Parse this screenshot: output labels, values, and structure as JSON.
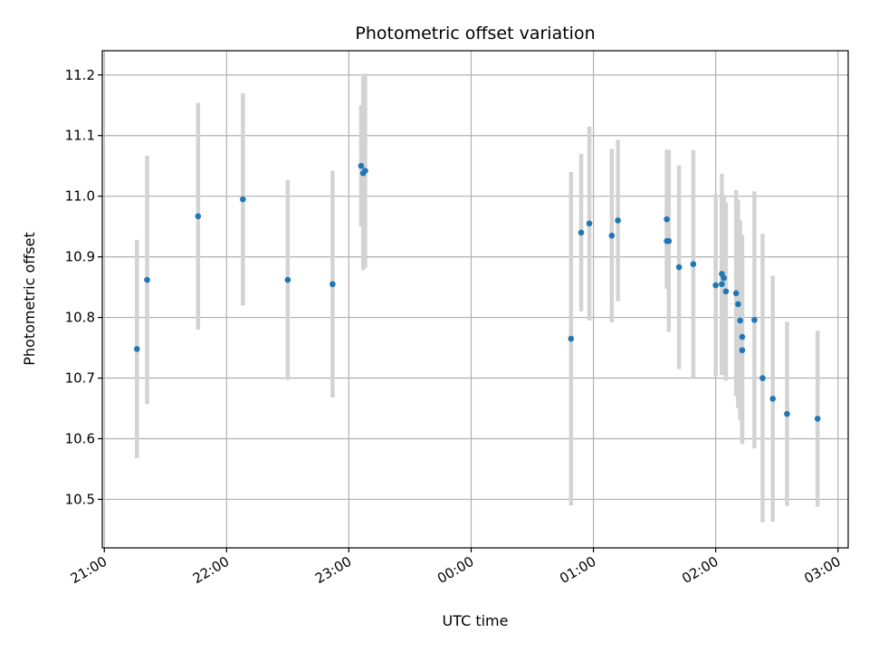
{
  "chart_data": {
    "type": "scatter",
    "title": "Photometric offset variation",
    "xlabel": "UTC time",
    "ylabel": "Photometric offset",
    "x_axis": {
      "kind": "time",
      "range": [
        "20:59",
        "03:05"
      ],
      "ticks": [
        "21:00",
        "22:00",
        "23:00",
        "00:00",
        "01:00",
        "02:00",
        "03:00"
      ],
      "tick_label_rotation": "rotated"
    },
    "ylim": [
      10.42,
      11.24
    ],
    "yticks": [
      "10.5",
      "10.6",
      "10.7",
      "10.8",
      "10.9",
      "11.0",
      "11.1",
      "11.2"
    ],
    "grid": true,
    "colors": {
      "point": "#1f77b4",
      "errorbar": "#d3d3d3"
    },
    "series": [
      {
        "points": [
          {
            "t": "21:16",
            "y": 10.748,
            "err": 0.18
          },
          {
            "t": "21:21",
            "y": 10.862,
            "err": 0.205
          },
          {
            "t": "21:46",
            "y": 10.967,
            "err": 0.187
          },
          {
            "t": "22:08",
            "y": 10.995,
            "err": 0.175
          },
          {
            "t": "22:30",
            "y": 10.862,
            "err": 0.165
          },
          {
            "t": "22:52",
            "y": 10.855,
            "err": 0.187
          },
          {
            "t": "23:06",
            "y": 11.05,
            "err": 0.1
          },
          {
            "t": "23:07",
            "y": 11.038,
            "err": 0.16
          },
          {
            "t": "23:08",
            "y": 11.042,
            "err": 0.16
          },
          {
            "t": "00:49",
            "y": 10.765,
            "err": 0.275
          },
          {
            "t": "00:54",
            "y": 10.94,
            "err": 0.13
          },
          {
            "t": "00:58",
            "y": 10.955,
            "err": 0.16
          },
          {
            "t": "01:09",
            "y": 10.935,
            "err": 0.143
          },
          {
            "t": "01:12",
            "y": 10.96,
            "err": 0.133
          },
          {
            "t": "01:36",
            "y": 10.962,
            "err": 0.115
          },
          {
            "t": "01:36",
            "y": 10.926,
            "err": 0.077
          },
          {
            "t": "01:37",
            "y": 10.926,
            "err": 0.15
          },
          {
            "t": "01:42",
            "y": 10.883,
            "err": 0.168
          },
          {
            "t": "01:49",
            "y": 10.888,
            "err": 0.188
          },
          {
            "t": "02:00",
            "y": 10.853,
            "err": 0.15
          },
          {
            "t": "02:03",
            "y": 10.872,
            "err": 0.165
          },
          {
            "t": "02:03",
            "y": 10.855,
            "err": 0.15
          },
          {
            "t": "02:04",
            "y": 10.865,
            "err": 0.137
          },
          {
            "t": "02:05",
            "y": 10.843,
            "err": 0.147
          },
          {
            "t": "02:10",
            "y": 10.84,
            "err": 0.17
          },
          {
            "t": "02:11",
            "y": 10.822,
            "err": 0.172
          },
          {
            "t": "02:12",
            "y": 10.795,
            "err": 0.165
          },
          {
            "t": "02:13",
            "y": 10.746,
            "err": 0.155
          },
          {
            "t": "02:13",
            "y": 10.768,
            "err": 0.168
          },
          {
            "t": "02:19",
            "y": 10.796,
            "err": 0.212
          },
          {
            "t": "02:23",
            "y": 10.7,
            "err": 0.238
          },
          {
            "t": "02:28",
            "y": 10.666,
            "err": 0.203
          },
          {
            "t": "02:35",
            "y": 10.641,
            "err": 0.152
          },
          {
            "t": "02:50",
            "y": 10.633,
            "err": 0.145
          }
        ]
      }
    ]
  }
}
